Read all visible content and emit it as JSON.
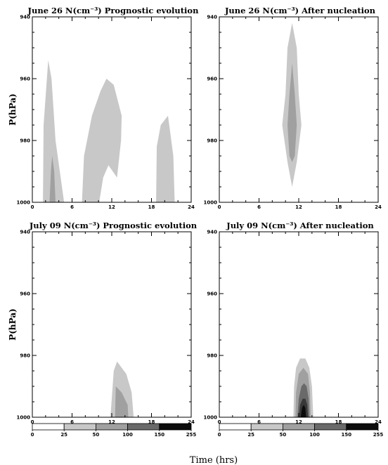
{
  "chart_data": [
    {
      "type": "contour",
      "title": "June 26 N(cm⁻³) Prognostic evolution",
      "ylabel": "P(hPa)",
      "xlim": [
        0,
        24
      ],
      "ylim": [
        940,
        1000
      ],
      "xticks": [
        "0",
        "6",
        "12",
        "18",
        "24"
      ],
      "yticks": [
        "940",
        "960",
        "980",
        "1000"
      ],
      "contours": [
        {
          "level": "0-25",
          "shade": "#c8c8c8",
          "polygon": [
            [
              1.6,
              1000
            ],
            [
              1.7,
              975
            ],
            [
              2.4,
              954
            ],
            [
              2.9,
              960
            ],
            [
              3.5,
              980
            ],
            [
              4.8,
              1000
            ]
          ]
        },
        {
          "level": "25-50",
          "shade": "#a0a0a0",
          "polygon": [
            [
              2.6,
              1000
            ],
            [
              2.8,
              990
            ],
            [
              3.0,
              985
            ],
            [
              3.3,
              990
            ],
            [
              3.5,
              1000
            ]
          ]
        },
        {
          "level": "0-25",
          "shade": "#c8c8c8",
          "polygon": [
            [
              7.5,
              1000
            ],
            [
              7.8,
              985
            ],
            [
              9,
              972
            ],
            [
              10.3,
              964
            ],
            [
              11.2,
              960
            ],
            [
              12.3,
              962
            ],
            [
              13.5,
              972
            ],
            [
              13.4,
              980
            ],
            [
              12.8,
              992
            ],
            [
              11.5,
              988
            ],
            [
              10.7,
              992
            ],
            [
              10.1,
              1000
            ]
          ]
        },
        {
          "level": "0-25",
          "shade": "#c8c8c8",
          "polygon": [
            [
              18.7,
              1000
            ],
            [
              18.8,
              982
            ],
            [
              19.4,
              975
            ],
            [
              20.5,
              972
            ],
            [
              21.3,
              985
            ],
            [
              21.5,
              1000
            ]
          ]
        }
      ]
    },
    {
      "type": "contour",
      "title": "June 26 N(cm⁻³) After nucleation",
      "xlim": [
        0,
        24
      ],
      "ylim": [
        940,
        1000
      ],
      "xticks": [
        "0",
        "6",
        "12",
        "18",
        "24"
      ],
      "yticks": [
        "940",
        "960",
        "980",
        "1000"
      ],
      "contours": [
        {
          "level": "0-25",
          "shade": "#c8c8c8",
          "polygon": [
            [
              11,
              942
            ],
            [
              11.7,
              950
            ],
            [
              12,
              965
            ],
            [
              12.4,
              975
            ],
            [
              11.7,
              987
            ],
            [
              11,
              995
            ],
            [
              10.3,
              987
            ],
            [
              9.5,
              975
            ],
            [
              10,
              965
            ],
            [
              10.3,
              950
            ]
          ]
        },
        {
          "level": "25-50",
          "shade": "#a0a0a0",
          "polygon": [
            [
              11,
              955
            ],
            [
              11.4,
              965
            ],
            [
              11.7,
              975
            ],
            [
              11.4,
              985
            ],
            [
              11,
              987
            ],
            [
              10.6,
              985
            ],
            [
              10.3,
              975
            ],
            [
              10.6,
              965
            ]
          ]
        }
      ]
    },
    {
      "type": "contour",
      "title": "July 09 N(cm⁻³) Prognostic evolution",
      "ylabel": "P(hPa)",
      "xlim": [
        0,
        24
      ],
      "ylim": [
        940,
        1000
      ],
      "xticks": [
        "0",
        "6",
        "12",
        "18",
        "24"
      ],
      "yticks": [
        "940",
        "960",
        "980",
        "1000"
      ],
      "contours": [
        {
          "level": "0-25",
          "shade": "#c8c8c8",
          "polygon": [
            [
              11.8,
              1000
            ],
            [
              12.3,
              985
            ],
            [
              12.8,
              982
            ],
            [
              14.2,
              986
            ],
            [
              15,
              992
            ],
            [
              15.3,
              1000
            ]
          ]
        },
        {
          "level": "25-50",
          "shade": "#a0a0a0",
          "polygon": [
            [
              12.5,
              1000
            ],
            [
              12.6,
              990
            ],
            [
              13.5,
              992
            ],
            [
              14.4,
              996
            ],
            [
              14.5,
              1000
            ]
          ]
        }
      ]
    },
    {
      "type": "contour",
      "title": "July 09 N(cm⁻³) After nucleation",
      "xlim": [
        0,
        24
      ],
      "ylim": [
        940,
        1000
      ],
      "xticks": [
        "0",
        "6",
        "12",
        "18",
        "24"
      ],
      "yticks": [
        "940",
        "960",
        "980",
        "1000"
      ],
      "contours": [
        {
          "level": "0-25",
          "shade": "#c8c8c8",
          "polygon": [
            [
              11.2,
              1000
            ],
            [
              11.3,
              990
            ],
            [
              11.6,
              984
            ],
            [
              12.2,
              981
            ],
            [
              13,
              981
            ],
            [
              13.6,
              984
            ],
            [
              14,
              990
            ],
            [
              14.2,
              1000
            ]
          ]
        },
        {
          "level": "25-50",
          "shade": "#a0a0a0",
          "polygon": [
            [
              11.5,
              1000
            ],
            [
              11.6,
              992
            ],
            [
              12,
              986
            ],
            [
              12.7,
              984
            ],
            [
              13.4,
              986
            ],
            [
              13.7,
              992
            ],
            [
              13.8,
              1000
            ]
          ]
        },
        {
          "level": "50-100",
          "shade": "#6a6a6a",
          "polygon": [
            [
              11.8,
              1000
            ],
            [
              12,
              994
            ],
            [
              12.4,
              990
            ],
            [
              12.8,
              989
            ],
            [
              13.2,
              990
            ],
            [
              13.5,
              994
            ],
            [
              13.6,
              1000
            ]
          ]
        },
        {
          "level": "100-150",
          "shade": "#383838",
          "polygon": [
            [
              12,
              1000
            ],
            [
              12.2,
              996
            ],
            [
              12.6,
              994
            ],
            [
              13,
              994
            ],
            [
              13.3,
              996
            ],
            [
              13.4,
              1000
            ]
          ]
        },
        {
          "level": "150-255",
          "shade": "#0c0c0c",
          "polygon": [
            [
              12.3,
              1000
            ],
            [
              12.5,
              997
            ],
            [
              12.75,
              996
            ],
            [
              13,
              997
            ],
            [
              13.1,
              1000
            ]
          ]
        }
      ]
    }
  ],
  "colorbar": {
    "ticks": [
      "0",
      "25",
      "50",
      "100",
      "150",
      "255"
    ],
    "colors": [
      "#ffffff",
      "#c8c8c8",
      "#a0a0a0",
      "#6a6a6a",
      "#0c0c0c"
    ]
  },
  "xlabel": "Time (hrs)"
}
